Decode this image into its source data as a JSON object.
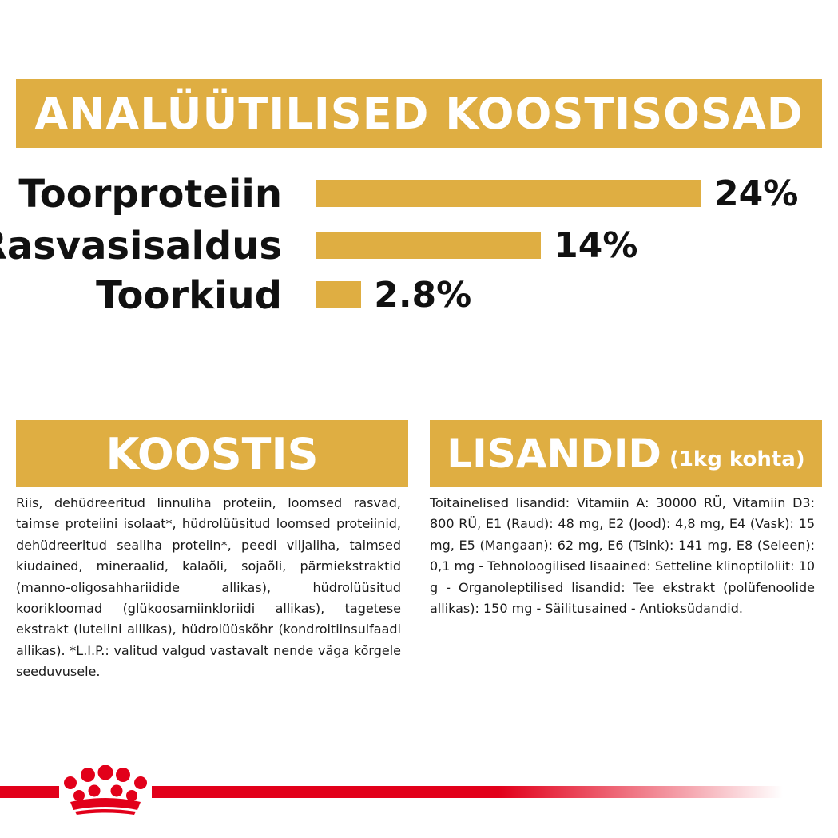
{
  "header": {
    "title": "ANALÜÜTILISED KOOSTISOSAD"
  },
  "nutrients": [
    {
      "label": "Toorproteiin",
      "value": "24%",
      "percent": 24
    },
    {
      "label": "Rasvasisaldus",
      "value": "14%",
      "percent": 14
    },
    {
      "label": "Toorkiud",
      "value": "2.8%",
      "percent": 2.8
    }
  ],
  "composition": {
    "title": "KOOSTIS",
    "text": "Riis, dehüdreeritud linnuliha proteiin, loomsed rasvad, taimse proteiini isolaat*, hüdrolüüsitud loomsed proteiinid, dehüdreeritud sealiha proteiin*, peedi viljaliha, taimsed kiudained, mineraalid, kalaõli, sojaõli, pärmiekstraktid (manno-oligosahhariidide allikas), hüdrolüüsitud koorikloomad (glükoosamiinkloriidi allikas), tagetese ekstrakt (luteiini allikas), hüdrolüüskõhr (kondroitiinsulfaadi allikas). *L.I.P.: valitud valgud vastavalt nende väga kõrgele seeduvusele."
  },
  "additives": {
    "title": "LISANDID",
    "subtitle": "(1kg kohta)",
    "text": "Toitainelised lisandid: Vitamiin A: 30000 RÜ, Vitamiin D3: 800 RÜ, E1 (Raud): 48 mg, E2 (Jood): 4,8 mg, E4 (Vask): 15 mg, E5 (Mangaan): 62 mg, E6 (Tsink): 141 mg, E8 (Seleen): 0,1 mg - Tehnoloogilised lisaained: Setteline klinoptiloliit: 10 g - Organoleptilised lisandid: Tee ekstrakt (polüfenoolide allikas): 150 mg - Säilitusained - Antioksüdandid."
  },
  "brand": {
    "logo": "royal-canin-crown-logo",
    "accent_color": "#e2001a",
    "gold_color": "#dfae42"
  }
}
